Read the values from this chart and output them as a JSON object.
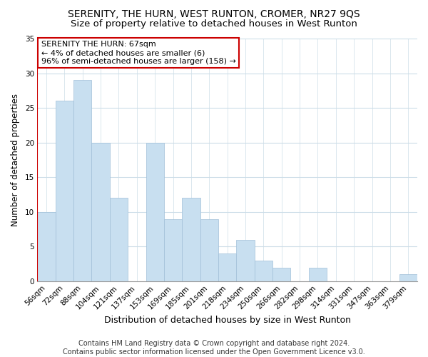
{
  "title": "SERENITY, THE HURN, WEST RUNTON, CROMER, NR27 9QS",
  "subtitle": "Size of property relative to detached houses in West Runton",
  "xlabel": "Distribution of detached houses by size in West Runton",
  "ylabel": "Number of detached properties",
  "bar_color": "#c8dff0",
  "bar_edge_color": "#a0bfd8",
  "highlight_color": "#cc0000",
  "categories": [
    "56sqm",
    "72sqm",
    "88sqm",
    "104sqm",
    "121sqm",
    "137sqm",
    "153sqm",
    "169sqm",
    "185sqm",
    "201sqm",
    "218sqm",
    "234sqm",
    "250sqm",
    "266sqm",
    "282sqm",
    "298sqm",
    "314sqm",
    "331sqm",
    "347sqm",
    "363sqm",
    "379sqm"
  ],
  "values": [
    10,
    26,
    29,
    20,
    12,
    0,
    20,
    9,
    12,
    9,
    4,
    6,
    3,
    2,
    0,
    2,
    0,
    0,
    0,
    0,
    1
  ],
  "ylim": [
    0,
    35
  ],
  "yticks": [
    0,
    5,
    10,
    15,
    20,
    25,
    30,
    35
  ],
  "annotation_line1": "SERENITY THE HURN: 67sqm",
  "annotation_line2": "← 4% of detached houses are smaller (6)",
  "annotation_line3": "96% of semi-detached houses are larger (158) →",
  "annotation_box_color": "#ffffff",
  "annotation_box_edge": "#cc0000",
  "footer_line1": "Contains HM Land Registry data © Crown copyright and database right 2024.",
  "footer_line2": "Contains public sector information licensed under the Open Government Licence v3.0.",
  "background_color": "#ffffff",
  "grid_color": "#ccdde8",
  "title_fontsize": 10,
  "subtitle_fontsize": 9.5,
  "xlabel_fontsize": 9,
  "ylabel_fontsize": 8.5,
  "tick_fontsize": 7.5,
  "annotation_fontsize": 8,
  "footer_fontsize": 7
}
